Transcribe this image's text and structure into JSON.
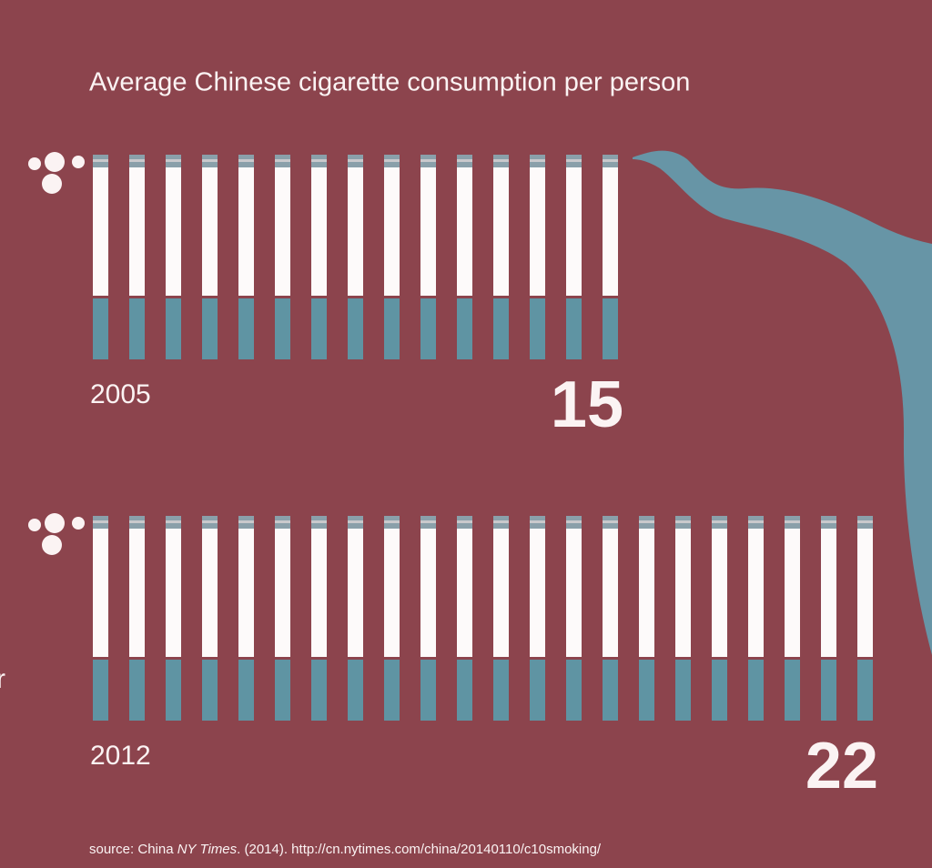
{
  "chart_data": {
    "type": "pictograph",
    "title": "Average Chinese cigarette consumption per person",
    "categories": [
      "2005",
      "2012"
    ],
    "values": [
      15,
      22
    ],
    "color": "#5f94a3",
    "side_text": "r",
    "source": [
      "source: China ",
      "NY Times",
      ". (2014). http://cn.nytimes.com/china/20140110/c10smoking/"
    ]
  }
}
